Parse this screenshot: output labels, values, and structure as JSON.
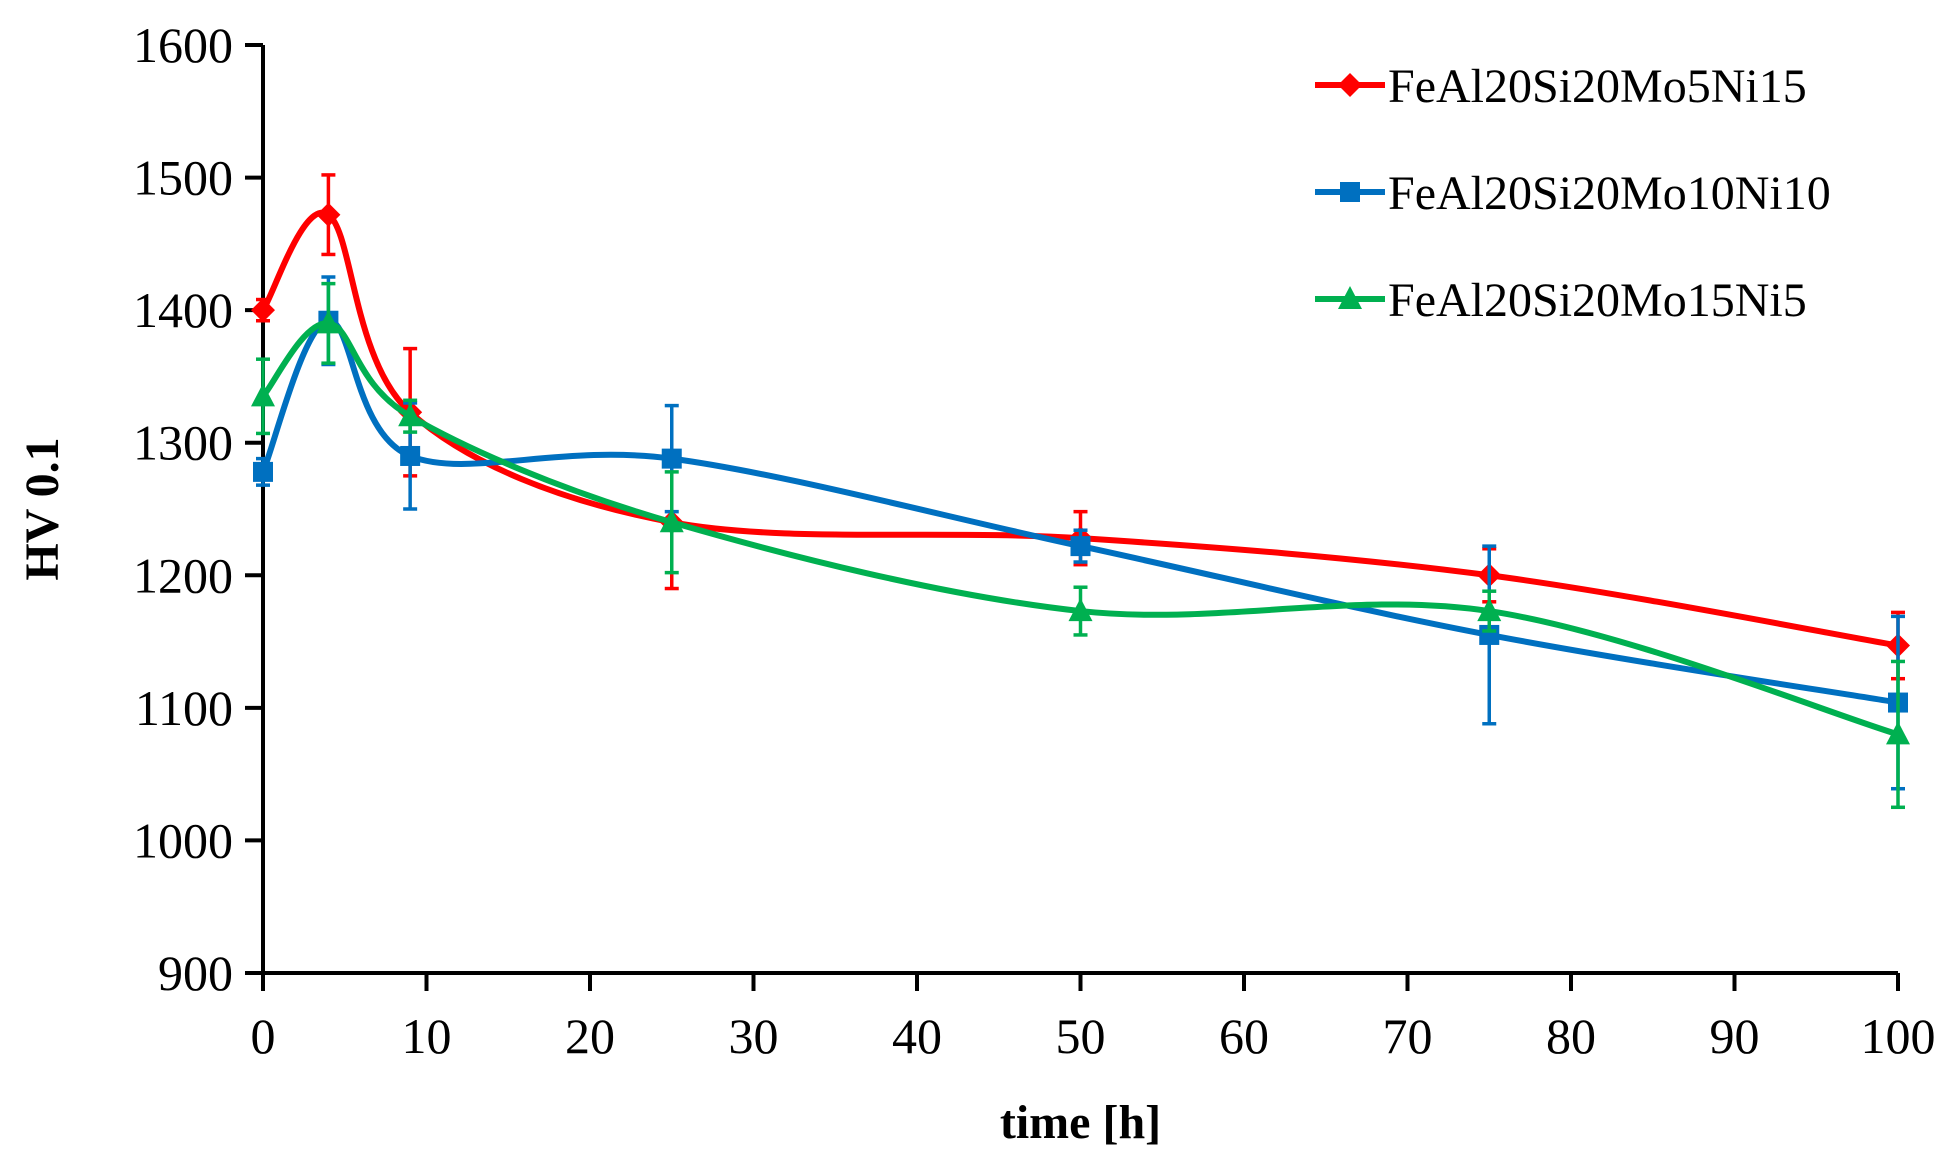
{
  "chart_data": {
    "type": "line",
    "title": "",
    "xlabel": "time [h]",
    "ylabel": "HV 0.1",
    "xlim": [
      0,
      100
    ],
    "ylim": [
      900,
      1600
    ],
    "xticks": [
      0,
      10,
      20,
      30,
      40,
      50,
      60,
      70,
      80,
      90,
      100
    ],
    "yticks": [
      900,
      1000,
      1100,
      1200,
      1300,
      1400,
      1500,
      1600
    ],
    "grid": false,
    "legend_position": "top-right",
    "smoothed_lines": true,
    "error_bars": true,
    "series": [
      {
        "name": "FeAl20Si20Mo5Ni15",
        "color": "#ff0000",
        "marker": "diamond",
        "x": [
          0,
          4,
          9,
          25,
          50,
          75,
          100
        ],
        "y": [
          1400,
          1472,
          1323,
          1240,
          1228,
          1200,
          1147
        ],
        "error": [
          8,
          30,
          48,
          50,
          20,
          20,
          25
        ]
      },
      {
        "name": "FeAl20Si20Mo10Ni10",
        "color": "#0070c0",
        "marker": "square",
        "x": [
          0,
          4,
          9,
          25,
          50,
          75,
          100
        ],
        "y": [
          1278,
          1392,
          1290,
          1288,
          1222,
          1155,
          1104
        ],
        "error": [
          10,
          33,
          40,
          40,
          12,
          67,
          65
        ]
      },
      {
        "name": "FeAl20Si20Mo15Ni5",
        "color": "#00b050",
        "marker": "triangle",
        "x": [
          0,
          4,
          9,
          25,
          50,
          75,
          100
        ],
        "y": [
          1335,
          1390,
          1320,
          1240,
          1173,
          1173,
          1080
        ],
        "error": [
          28,
          30,
          12,
          38,
          18,
          15,
          55
        ]
      }
    ]
  }
}
